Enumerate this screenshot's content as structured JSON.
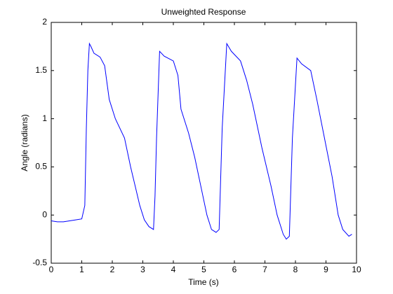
{
  "chart_data": {
    "type": "line",
    "title": "Unweighted Response",
    "xlabel": "Time (s)",
    "ylabel": "Angle (radians)",
    "x": [
      0,
      0.2,
      0.4,
      0.6,
      0.8,
      1.0,
      1.1,
      1.15,
      1.2,
      1.25,
      1.3,
      1.4,
      1.6,
      1.75,
      1.9,
      2.1,
      2.4,
      2.6,
      2.75,
      2.9,
      3.05,
      3.2,
      3.35,
      3.4,
      3.45,
      3.55,
      3.7,
      4.0,
      4.15,
      4.25,
      4.5,
      4.7,
      4.9,
      5.1,
      5.25,
      5.4,
      5.5,
      5.6,
      5.75,
      5.9,
      6.2,
      6.4,
      6.6,
      6.9,
      7.2,
      7.4,
      7.6,
      7.7,
      7.8,
      7.9,
      8.05,
      8.2,
      8.5,
      8.7,
      8.95,
      9.2,
      9.4,
      9.55,
      9.75,
      9.85
    ],
    "values": [
      -0.06,
      -0.07,
      -0.07,
      -0.06,
      -0.05,
      -0.04,
      0.1,
      0.9,
      1.5,
      1.78,
      1.75,
      1.68,
      1.64,
      1.55,
      1.2,
      1.0,
      0.8,
      0.5,
      0.3,
      0.1,
      -0.05,
      -0.12,
      -0.15,
      0.2,
      0.8,
      1.7,
      1.65,
      1.6,
      1.45,
      1.1,
      0.85,
      0.6,
      0.3,
      0.0,
      -0.15,
      -0.18,
      -0.15,
      0.9,
      1.78,
      1.7,
      1.6,
      1.4,
      1.15,
      0.7,
      0.3,
      0.0,
      -0.2,
      -0.25,
      -0.22,
      0.8,
      1.63,
      1.57,
      1.5,
      1.2,
      0.8,
      0.4,
      0.0,
      -0.15,
      -0.22,
      -0.2
    ],
    "color": "#0000ff",
    "xlim": [
      0,
      10
    ],
    "xticks": [
      0,
      1,
      2,
      3,
      4,
      5,
      6,
      7,
      8,
      9,
      10
    ],
    "ylim": [
      -0.5,
      2
    ],
    "yticks": [
      -0.5,
      0,
      0.5,
      1,
      1.5,
      2
    ]
  }
}
